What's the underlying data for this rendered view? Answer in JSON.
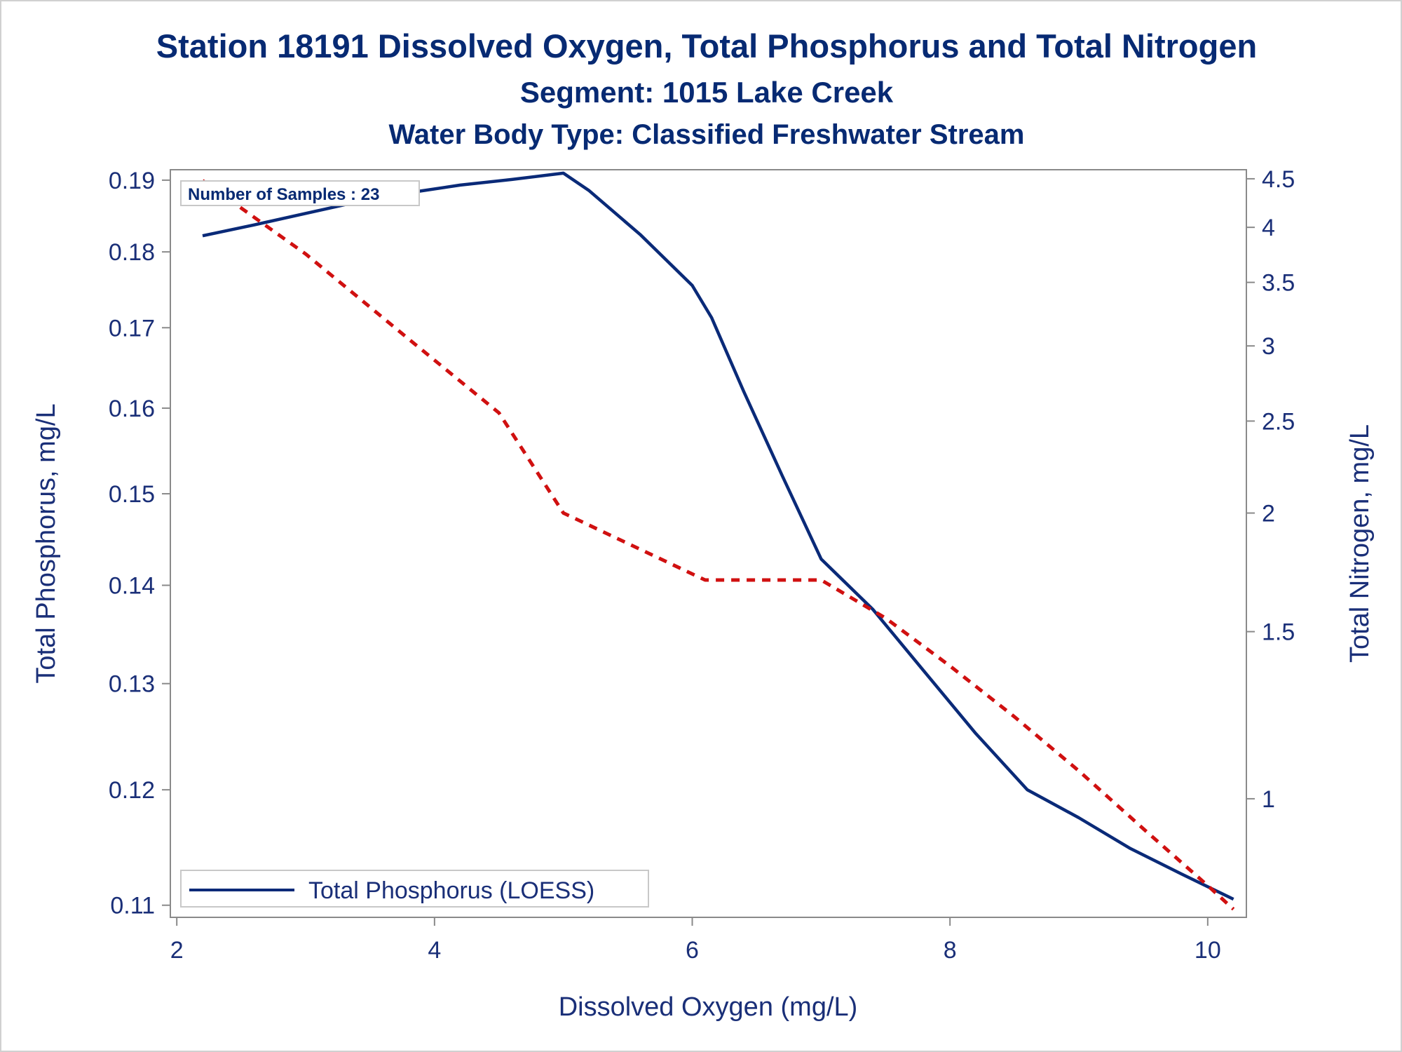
{
  "titles": {
    "line1": "Station 18191  Dissolved Oxygen, Total Phosphorus and Total Nitrogen",
    "line2": "Segment: 1015  Lake Creek",
    "line3": "Water Body Type: Classified Freshwater Stream"
  },
  "annotation": "Number of Samples : 23",
  "colors": {
    "phosphorus_line": "#0a2a78",
    "nitrogen_line": "#d01010",
    "text": "#1a2f78",
    "axis": "#8a8a8a"
  },
  "chart_data": {
    "type": "line",
    "xlabel": "Dissolved Oxygen (mg/L)",
    "ylabel_left": "Total Phosphorus, mg/L",
    "ylabel_right": "Total Nitrogen, mg/L",
    "xlim": [
      1.95,
      10.3
    ],
    "ylim_left": [
      0.109,
      0.1915
    ],
    "ylim_right": [
      0.75,
      4.6
    ],
    "y_scale": "log",
    "x_ticks": [
      "2",
      "4",
      "6",
      "8",
      "10"
    ],
    "y_left_ticks": [
      "0.11",
      "0.12",
      "0.13",
      "0.14",
      "0.15",
      "0.16",
      "0.17",
      "0.18",
      "0.19"
    ],
    "y_right_ticks": [
      "1",
      "1.5",
      "2",
      "2.5",
      "3",
      "3.5",
      "4",
      "4.5"
    ],
    "legend": {
      "placement": "bottom-left"
    },
    "series": [
      {
        "name": "Total Phosphorus (LOESS)",
        "axis": "left",
        "style": "solid",
        "x": [
          2.2,
          2.6,
          3.0,
          3.4,
          3.8,
          4.2,
          4.6,
          5.0,
          5.2,
          5.6,
          6.0,
          6.15,
          6.4,
          6.7,
          7.0,
          7.4,
          7.8,
          8.2,
          8.6,
          9.0,
          9.4,
          9.8,
          10.2
        ],
        "values": [
          0.1822,
          0.1837,
          0.1853,
          0.1869,
          0.1882,
          0.1893,
          0.1901,
          0.191,
          0.1885,
          0.1823,
          0.1755,
          0.1713,
          0.162,
          0.152,
          0.1428,
          0.1375,
          0.1312,
          0.1252,
          0.12,
          0.1175,
          0.1148,
          0.1126,
          0.1105
        ]
      },
      {
        "name": "",
        "axis": "right",
        "style": "dashed",
        "x": [
          2.2,
          3.0,
          3.8,
          4.5,
          5.0,
          6.1,
          6.5,
          7.0,
          7.5,
          8.0,
          8.5,
          9.0,
          9.5,
          10.0,
          10.2
        ],
        "values": [
          4.48,
          3.75,
          3.05,
          2.55,
          2.0,
          1.7,
          1.7,
          1.7,
          1.55,
          1.38,
          1.22,
          1.07,
          0.93,
          0.81,
          0.765
        ]
      }
    ]
  }
}
